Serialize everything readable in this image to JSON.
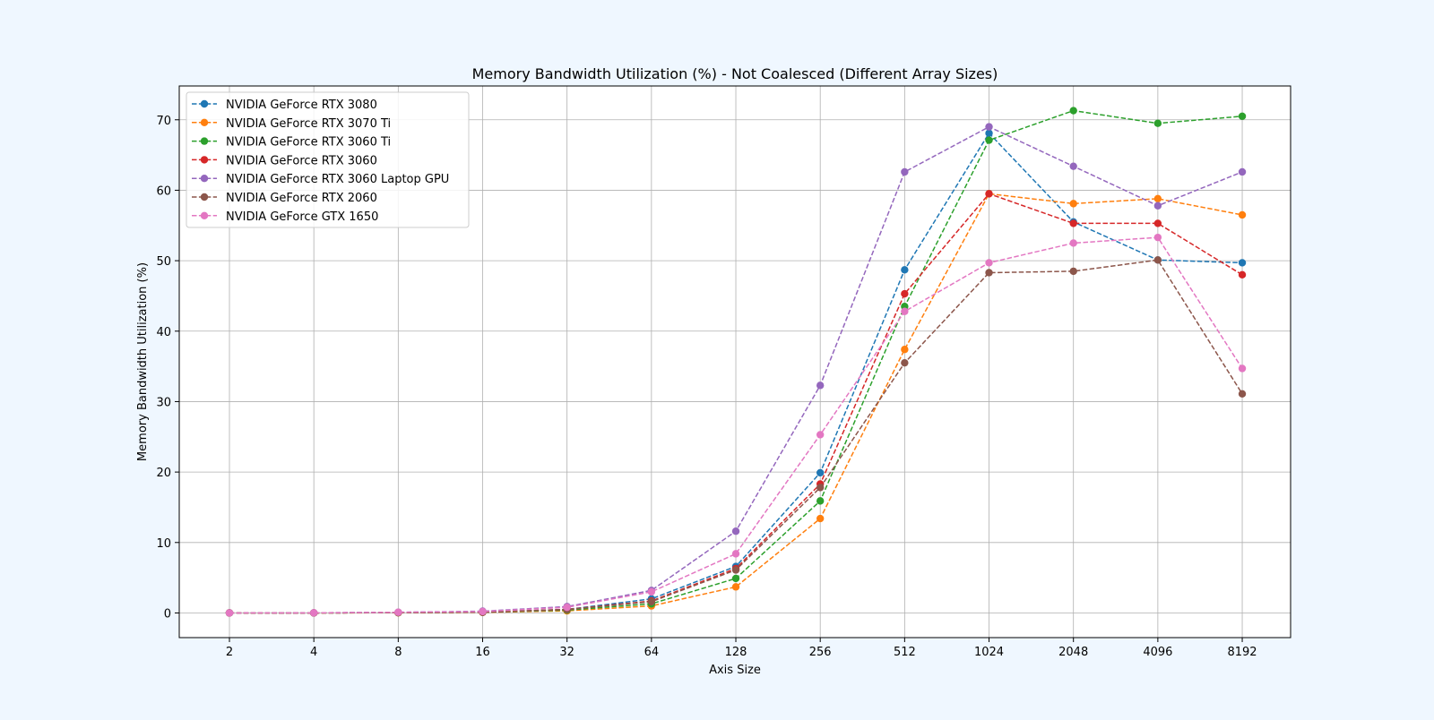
{
  "chart_data": {
    "type": "line",
    "title": "Memory Bandwidth Utilization (%) - Not Coalesced (Different Array Sizes)",
    "xlabel": "Axis Size",
    "ylabel": "Memory Bandwidth Utilization (%)",
    "categories": [
      "2",
      "4",
      "8",
      "16",
      "32",
      "64",
      "128",
      "256",
      "512",
      "1024",
      "2048",
      "4096",
      "8192"
    ],
    "ylim": [
      -3.5,
      74.8
    ],
    "yticks": [
      0,
      10,
      20,
      30,
      40,
      50,
      60,
      70
    ],
    "grid": true,
    "legend_position": "top-left",
    "line_style": "dashed",
    "marker": "circle",
    "series": [
      {
        "name": "NVIDIA GeForce RTX 3080",
        "color": "#1f77b4",
        "values": [
          0.0,
          0.0,
          0.05,
          0.1,
          0.5,
          2.0,
          6.6,
          19.9,
          48.7,
          68.1,
          55.5,
          50.1,
          49.7
        ]
      },
      {
        "name": "NVIDIA GeForce RTX 3070 Ti",
        "color": "#ff7f0e",
        "values": [
          0.0,
          0.0,
          0.03,
          0.08,
          0.3,
          1.0,
          3.7,
          13.4,
          37.4,
          59.5,
          58.1,
          58.8,
          56.5
        ]
      },
      {
        "name": "NVIDIA GeForce RTX 3060 Ti",
        "color": "#2ca02c",
        "values": [
          0.0,
          0.0,
          0.04,
          0.1,
          0.4,
          1.3,
          4.9,
          15.9,
          43.5,
          67.1,
          71.3,
          69.5,
          70.5
        ]
      },
      {
        "name": "NVIDIA GeForce RTX 3060",
        "color": "#d62728",
        "values": [
          0.0,
          0.0,
          0.05,
          0.1,
          0.5,
          1.7,
          6.3,
          18.3,
          45.3,
          59.5,
          55.3,
          55.3,
          48.0
        ]
      },
      {
        "name": "NVIDIA GeForce RTX 3060 Laptop GPU",
        "color": "#9467bd",
        "values": [
          0.0,
          0.02,
          0.1,
          0.25,
          0.9,
          3.2,
          11.6,
          32.3,
          62.6,
          69.0,
          63.4,
          57.8,
          62.6
        ]
      },
      {
        "name": "NVIDIA GeForce RTX 2060",
        "color": "#8c564b",
        "values": [
          0.0,
          0.0,
          0.05,
          0.1,
          0.5,
          1.6,
          6.1,
          17.8,
          35.5,
          48.3,
          48.5,
          50.1,
          31.1
        ]
      },
      {
        "name": "NVIDIA GeForce GTX 1650",
        "color": "#e377c2",
        "values": [
          0.0,
          0.02,
          0.1,
          0.2,
          0.8,
          3.0,
          8.4,
          25.3,
          42.8,
          49.7,
          52.5,
          53.3,
          34.7
        ]
      }
    ]
  }
}
